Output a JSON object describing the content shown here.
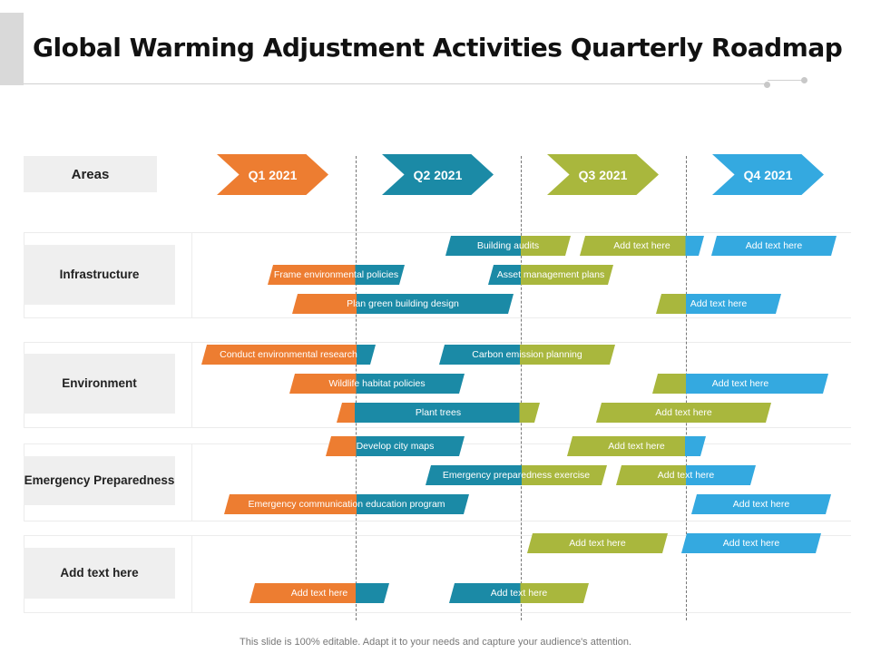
{
  "title": "Global Warming Adjustment Activities Quarterly Roadmap",
  "header": {
    "areas_label": "Areas"
  },
  "quarters": [
    "Q1 2021",
    "Q2 2021",
    "Q3 2021",
    "Q4 2021"
  ],
  "colors": {
    "q1": "#ed7d31",
    "q2": "#1b8aa6",
    "q3": "#a9b73d",
    "q4": "#34a9e0"
  },
  "areas": [
    "Infrastructure",
    "Environment",
    "Emergency Preparedness",
    "Add text here"
  ],
  "bars": [
    "Building audits",
    "Add text here",
    "Add text here",
    "Frame environmental policies",
    "Asset management plans",
    "Plan green building design",
    "Add text here",
    "Conduct environmental research",
    "Carbon emission planning",
    "Wildlife habitat policies",
    "Add text here",
    "Plant trees",
    "Add text here",
    "Develop city maps",
    "Add text here",
    "Emergency preparedness exercise",
    "Add text here",
    "Emergency communication education program",
    "Add text here",
    "Add text here",
    "Add text here",
    "Add text here",
    "Add text here"
  ],
  "footer": "This slide is 100% editable. Adapt it to your needs and capture your audience's attention."
}
